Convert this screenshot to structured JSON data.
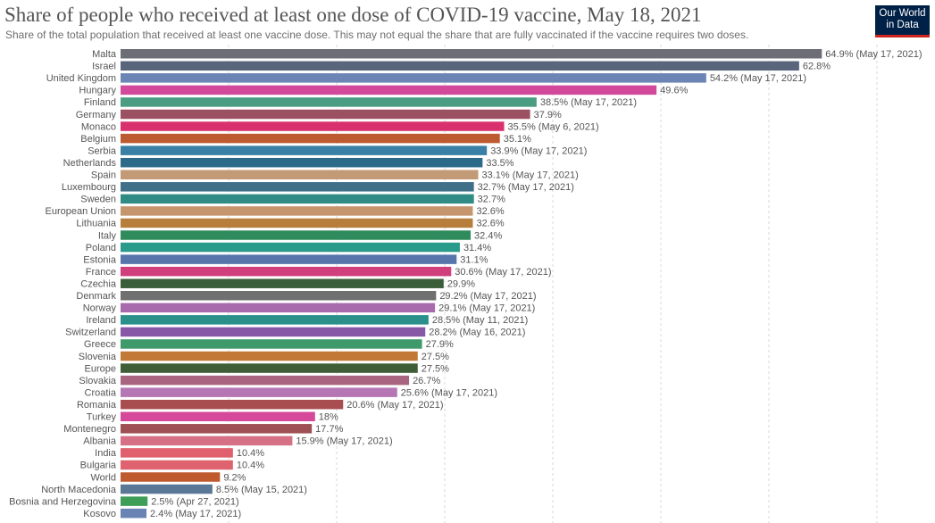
{
  "header": {
    "title": "Share of people who received at least one dose of COVID-19 vaccine, May 18, 2021",
    "subtitle": "Share of the total population that received at least one vaccine dose. This may not equal the share that are fully vaccinated if the vaccine requires two doses."
  },
  "logo": {
    "line1": "Our World",
    "line2": "in Data"
  },
  "chart_data": {
    "type": "bar",
    "orientation": "horizontal",
    "title": "Share of people who received at least one dose of COVID-19 vaccine, May 18, 2021",
    "xlabel": "",
    "ylabel": "",
    "xlim": [
      0,
      70
    ],
    "grid": true,
    "gridline_values": [
      10,
      20,
      30,
      40,
      50,
      60,
      70
    ],
    "categories": [
      "Malta",
      "Israel",
      "United Kingdom",
      "Hungary",
      "Finland",
      "Germany",
      "Monaco",
      "Belgium",
      "Serbia",
      "Netherlands",
      "Spain",
      "Luxembourg",
      "Sweden",
      "European Union",
      "Lithuania",
      "Italy",
      "Poland",
      "Estonia",
      "France",
      "Czechia",
      "Denmark",
      "Norway",
      "Ireland",
      "Switzerland",
      "Greece",
      "Slovenia",
      "Europe",
      "Slovakia",
      "Croatia",
      "Romania",
      "Turkey",
      "Montenegro",
      "Albania",
      "India",
      "Bulgaria",
      "World",
      "North Macedonia",
      "Bosnia and Herzegovina",
      "Kosovo"
    ],
    "values": [
      64.9,
      62.8,
      54.2,
      49.6,
      38.5,
      37.9,
      35.5,
      35.1,
      33.9,
      33.5,
      33.1,
      32.7,
      32.7,
      32.6,
      32.6,
      32.4,
      31.4,
      31.1,
      30.6,
      29.9,
      29.2,
      29.1,
      28.5,
      28.2,
      27.9,
      27.5,
      27.5,
      26.7,
      25.6,
      20.6,
      18,
      17.7,
      15.9,
      10.4,
      10.4,
      9.2,
      8.5,
      2.5,
      2.4
    ],
    "value_labels": [
      "64.9% (May 17, 2021)",
      "62.8%",
      "54.2% (May 17, 2021)",
      "49.6%",
      "38.5% (May 17, 2021)",
      "37.9%",
      "35.5% (May 6, 2021)",
      "35.1%",
      "33.9% (May 17, 2021)",
      "33.5%",
      "33.1% (May 17, 2021)",
      "32.7% (May 17, 2021)",
      "32.7%",
      "32.6%",
      "32.6%",
      "32.4%",
      "31.4%",
      "31.1%",
      "30.6% (May 17, 2021)",
      "29.9%",
      "29.2% (May 17, 2021)",
      "29.1% (May 17, 2021)",
      "28.5% (May 11, 2021)",
      "28.2% (May 16, 2021)",
      "27.9%",
      "27.5%",
      "27.5%",
      "26.7%",
      "25.6% (May 17, 2021)",
      "20.6% (May 17, 2021)",
      "18%",
      "17.7%",
      "15.9% (May 17, 2021)",
      "10.4%",
      "10.4%",
      "9.2%",
      "8.5% (May 15, 2021)",
      "2.5% (Apr 27, 2021)",
      "2.4% (May 17, 2021)"
    ],
    "colors": [
      "#6d6d75",
      "#59657a",
      "#6c85b5",
      "#d2499c",
      "#4a9c82",
      "#9b5161",
      "#d8316e",
      "#bd5a2f",
      "#3a7fa5",
      "#2b6a88",
      "#c29a76",
      "#3f6f89",
      "#2f8b84",
      "#c5966d",
      "#b77e3b",
      "#2f8b5c",
      "#2a9a8a",
      "#5575ab",
      "#d03e7c",
      "#3b5e3a",
      "#707070",
      "#a86aac",
      "#2a9089",
      "#8658a5",
      "#3e9a6b",
      "#c27938",
      "#3f5e37",
      "#a9647f",
      "#b576b3",
      "#a84e50",
      "#d5489a",
      "#9e5054",
      "#d67084",
      "#e0606e",
      "#df636f",
      "#bf5a2f",
      "#5a7896",
      "#3e9e57",
      "#6983b4"
    ]
  }
}
